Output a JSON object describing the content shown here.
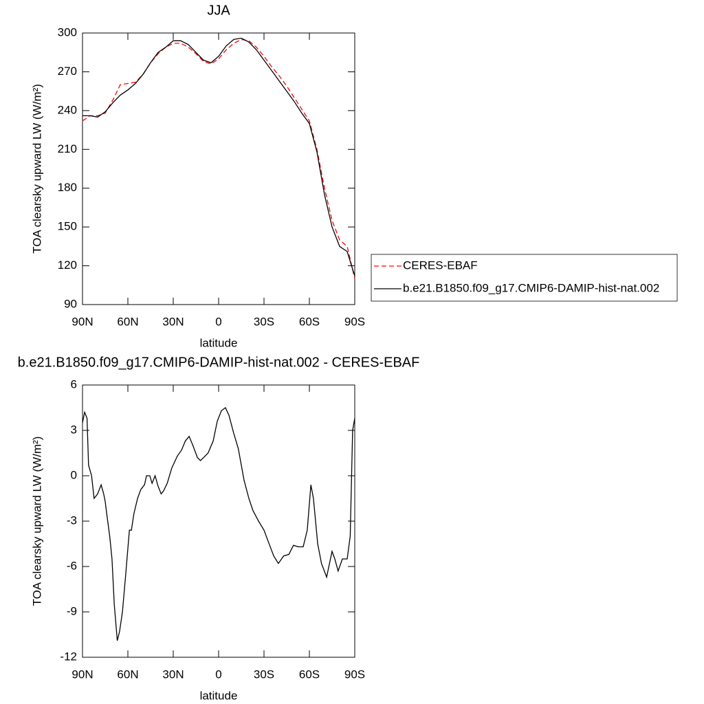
{
  "chart_data": [
    {
      "type": "line",
      "title": "JJA",
      "xlabel": "latitude",
      "ylabel": "TOA clearsky upward LW (W/m²)",
      "xlim": [
        90,
        -90
      ],
      "ylim": [
        90,
        300
      ],
      "xticks": [
        {
          "value": 90,
          "label": "90N"
        },
        {
          "value": 60,
          "label": "60N"
        },
        {
          "value": 30,
          "label": "30N"
        },
        0,
        {
          "value": -30,
          "label": "30S"
        },
        {
          "value": -60,
          "label": "60S"
        },
        {
          "value": -90,
          "label": "90S"
        }
      ],
      "yticks": [
        90,
        120,
        150,
        180,
        210,
        240,
        270,
        300
      ],
      "legend": "outside right",
      "x": [
        90,
        85,
        80,
        75,
        70,
        65,
        60,
        55,
        50,
        45,
        40,
        35,
        30,
        25,
        20,
        15,
        10,
        5,
        0,
        -5,
        -10,
        -15,
        -20,
        -25,
        -30,
        -35,
        -40,
        -45,
        -50,
        -55,
        -60,
        -65,
        -70,
        -75,
        -80,
        -85,
        -90
      ],
      "series": [
        {
          "name": "CERES-EBAF",
          "color": "#ff0000",
          "dashed": true,
          "values": [
            232,
            236,
            236,
            238,
            248,
            260,
            261,
            262,
            268,
            277,
            284,
            289,
            292,
            292,
            289,
            284,
            278,
            276,
            280,
            287,
            292,
            295,
            294,
            289,
            282,
            274,
            267,
            259,
            250,
            241,
            232,
            210,
            180,
            155,
            140,
            135,
            110
          ]
        },
        {
          "name": "b.e21.B1850.f09_g17.CMIP6-DAMIP-hist-nat.002",
          "color": "#000000",
          "dashed": false,
          "values": [
            236,
            236,
            235,
            239,
            246,
            252,
            256,
            261,
            268,
            277,
            285,
            289,
            294,
            294,
            291,
            285,
            279,
            277,
            282,
            290,
            295,
            296,
            293,
            287,
            279,
            271,
            263,
            255,
            247,
            238,
            230,
            208,
            175,
            150,
            135,
            131,
            112
          ]
        }
      ]
    },
    {
      "type": "line",
      "title": "b.e21.B1850.f09_g17.CMIP6-DAMIP-hist-nat.002 - CERES-EBAF",
      "xlabel": "latitude",
      "ylabel": "TOA clearsky upward LW (W/m²)",
      "xlim": [
        90,
        -90
      ],
      "ylim": [
        -12,
        6
      ],
      "xticks": [
        {
          "value": 90,
          "label": "90N"
        },
        {
          "value": 60,
          "label": "60N"
        },
        {
          "value": 30,
          "label": "30N"
        },
        0,
        {
          "value": -30,
          "label": "30S"
        },
        {
          "value": -60,
          "label": "60S"
        },
        {
          "value": -90,
          "label": "90S"
        }
      ],
      "yticks": [
        -12,
        -9,
        -6,
        -3,
        0,
        3,
        6
      ],
      "x": [
        90,
        88.6,
        87,
        86,
        84,
        82.3,
        80,
        77.7,
        76,
        75,
        74,
        72,
        70.5,
        69,
        67,
        65.5,
        63.6,
        61.4,
        59,
        57.7,
        56,
        53.6,
        51.4,
        49,
        47.7,
        45.5,
        44,
        42,
        40,
        38,
        36.4,
        34,
        31,
        27.3,
        24.5,
        22,
        19.5,
        17,
        14,
        12,
        9,
        7,
        3.6,
        0.9,
        -1.8,
        -4.5,
        -6.8,
        -10,
        -13,
        -16.8,
        -20,
        -22.7,
        -26.4,
        -30,
        -33,
        -36.4,
        -39.5,
        -43,
        -46.4,
        -49.5,
        -52.7,
        -55.9,
        -58.6,
        -61,
        -62.7,
        -65.5,
        -68,
        -71.4,
        -75,
        -76.8,
        -79,
        -81.8,
        -85,
        -87,
        -88.6,
        -90
      ],
      "series": [
        {
          "name": null,
          "color": "#000000",
          "dashed": false,
          "values": [
            3.5,
            4.2,
            3.8,
            0.7,
            0,
            -1.5,
            -1.2,
            -0.6,
            -1.2,
            -1.7,
            -2.5,
            -4,
            -5.5,
            -8.5,
            -10.9,
            -10.3,
            -9,
            -6.5,
            -3.6,
            -3.6,
            -2.5,
            -1.5,
            -0.9,
            -0.6,
            0,
            0,
            -0.5,
            0,
            -0.7,
            -1.2,
            -1,
            -0.5,
            0.5,
            1.3,
            1.7,
            2.3,
            2.6,
            2,
            1.2,
            1,
            1.3,
            1.5,
            2.3,
            3.6,
            4.3,
            4.5,
            4,
            2.8,
            1.8,
            -0.3,
            -1.5,
            -2.3,
            -3,
            -3.6,
            -4.4,
            -5.3,
            -5.8,
            -5.3,
            -5.2,
            -4.6,
            -4.7,
            -4.7,
            -3.6,
            -0.6,
            -1.5,
            -4.5,
            -5.8,
            -6.7,
            -5,
            -5.5,
            -6.3,
            -5.5,
            -5.5,
            -4,
            3,
            3.8
          ]
        }
      ]
    }
  ]
}
